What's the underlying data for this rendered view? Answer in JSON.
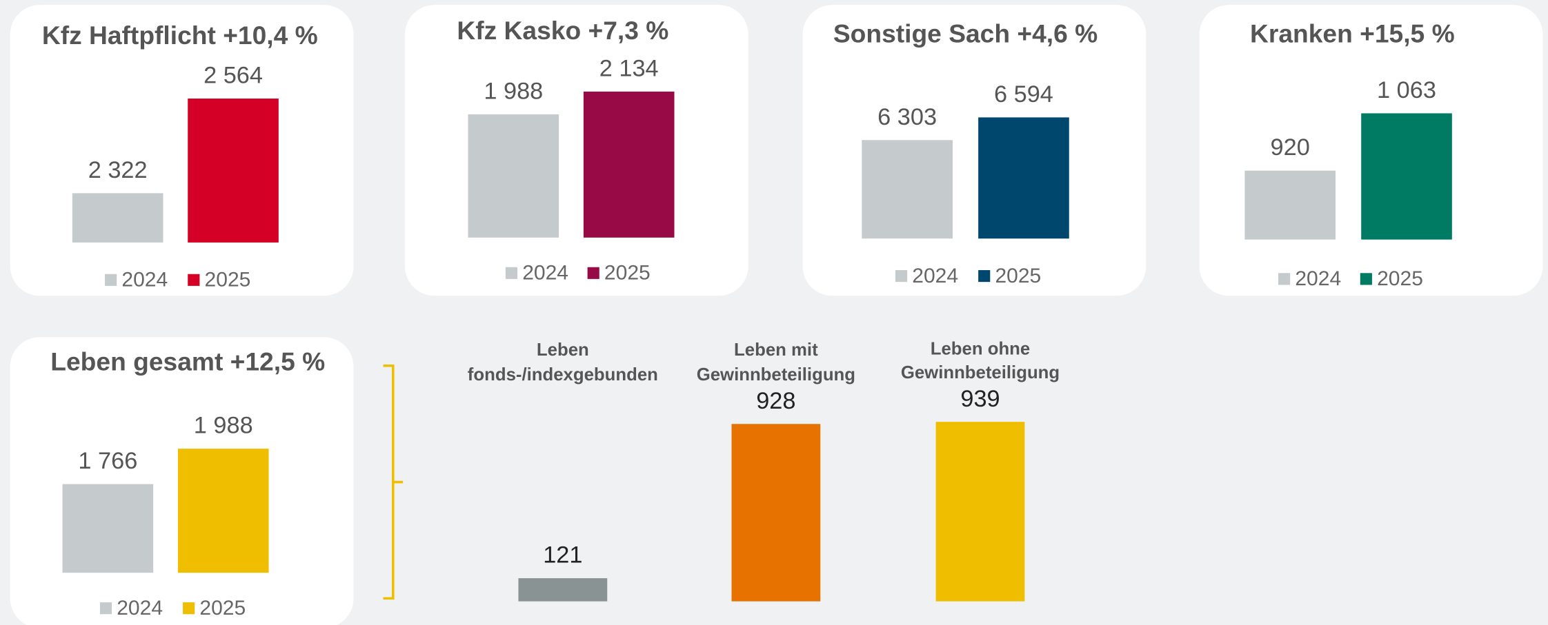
{
  "chart_data": [
    {
      "type": "bar",
      "title": "Kfz Haftpflicht +10,4 %",
      "categories": [
        "2024",
        "2025"
      ],
      "values": [
        2322,
        2564
      ],
      "value_labels": [
        "2 322",
        "2 564"
      ],
      "colors": [
        "#c5cacc",
        "#d50025"
      ],
      "ylim": [
        2196,
        2574
      ],
      "legend": true
    },
    {
      "type": "bar",
      "title": "Kfz Kasko +7,3 %",
      "categories": [
        "2024",
        "2025"
      ],
      "values": [
        1988,
        2134
      ],
      "value_labels": [
        "1 988",
        "2 134"
      ],
      "colors": [
        "#c5cacc",
        "#970a46"
      ],
      "ylim": [
        1197,
        2146
      ],
      "legend": true
    },
    {
      "type": "bar",
      "title": "Sonstige Sach +4,6 %",
      "categories": [
        "2024",
        "2025"
      ],
      "values": [
        6303,
        6594
      ],
      "value_labels": [
        "6 303",
        "6 594"
      ],
      "colors": [
        "#c5cacc",
        "#00476e"
      ],
      "ylim": [
        5038,
        6937
      ],
      "legend": true
    },
    {
      "type": "bar",
      "title": "Kranken +15,5 %",
      "categories": [
        "2024",
        "2025"
      ],
      "values": [
        920,
        1063
      ],
      "value_labels": [
        "920",
        "1 063"
      ],
      "colors": [
        "#c5cacc",
        "#007b63"
      ],
      "ylim": [
        748,
        1117
      ],
      "legend": true
    },
    {
      "type": "bar",
      "title": "Leben gesamt +12,5 %",
      "categories": [
        "2024",
        "2025"
      ],
      "values": [
        1766,
        1988
      ],
      "value_labels": [
        "1 766",
        "1 988"
      ],
      "colors": [
        "#c5cacc",
        "#f0be00"
      ],
      "ylim": [
        1211,
        2137
      ],
      "legend": true
    },
    {
      "type": "bar",
      "categories": [
        [
          "Leben",
          "fonds-/indexgebunden"
        ],
        [
          "Leben mit",
          "Gewinnbeteiligung"
        ],
        [
          "Leben ohne",
          "Gewinnbeteiligung"
        ]
      ],
      "values": [
        121,
        928,
        939
      ],
      "colors": [
        "#8a9393",
        "#e87200",
        "#f0be00"
      ],
      "ylim": [
        0,
        980
      ],
      "legend": false
    }
  ]
}
